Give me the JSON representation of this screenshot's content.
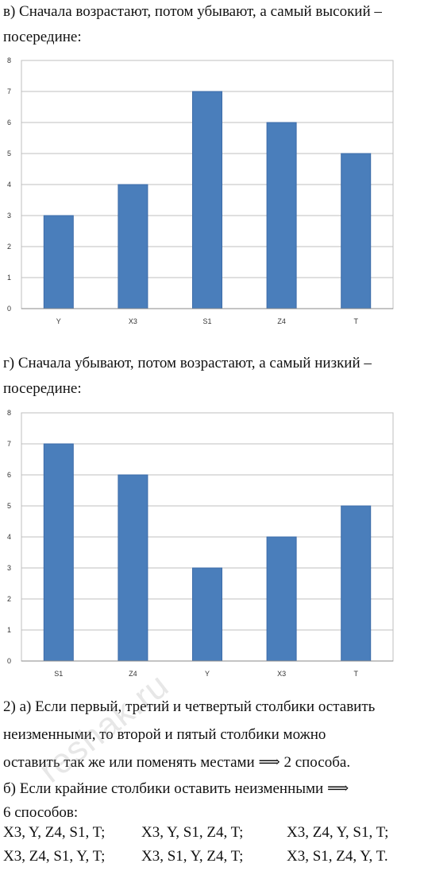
{
  "text": {
    "v_line1": "в) Сначала возрастают, потом убывают, а самый высокий –",
    "v_line2": "посередине:",
    "g_line1": "г) Сначала убывают, потом возрастают, а самый низкий –",
    "g_line2": "посередине:",
    "p2_line1": "2) а) Если первый, третий и четвертый столбики оставить",
    "p2_line2": "неизменными, то второй и пятый столбики можно",
    "p2_line3": "оставить так же или поменять местами ⟹ 2 способа.",
    "p2_line4": "б) Если крайние столбики оставить неизменными ⟹",
    "p2_line5": "6 способов:",
    "ways_row1": [
      "X3, Y, Z4, S1, T;",
      "X3, Y, S1, Z4, T;",
      "X3, Z4, Y, S1, T;"
    ],
    "ways_row2": [
      "X3, Z4, S1, Y, T;",
      "X3, S1, Y, Z4, T;",
      "X3, S1, Z4, Y, T."
    ],
    "watermark": "reshak.ru"
  },
  "colors": {
    "bar": "#4a7ebb",
    "bar_stroke": "#3d6ca8",
    "grid": "#bfbfbf",
    "axis": "#888888"
  },
  "chart_data": [
    {
      "type": "bar",
      "categories": [
        "Y",
        "X3",
        "S1",
        "Z4",
        "T"
      ],
      "values": [
        3,
        4,
        7,
        6,
        5
      ],
      "ylim": [
        0,
        8
      ],
      "yticks": [
        0,
        1,
        2,
        3,
        4,
        5,
        6,
        7,
        8
      ],
      "grid": true
    },
    {
      "type": "bar",
      "categories": [
        "S1",
        "Z4",
        "Y",
        "X3",
        "T"
      ],
      "values": [
        7,
        6,
        3,
        4,
        5
      ],
      "ylim": [
        0,
        8
      ],
      "yticks": [
        0,
        1,
        2,
        3,
        4,
        5,
        6,
        7,
        8
      ],
      "grid": true
    }
  ]
}
